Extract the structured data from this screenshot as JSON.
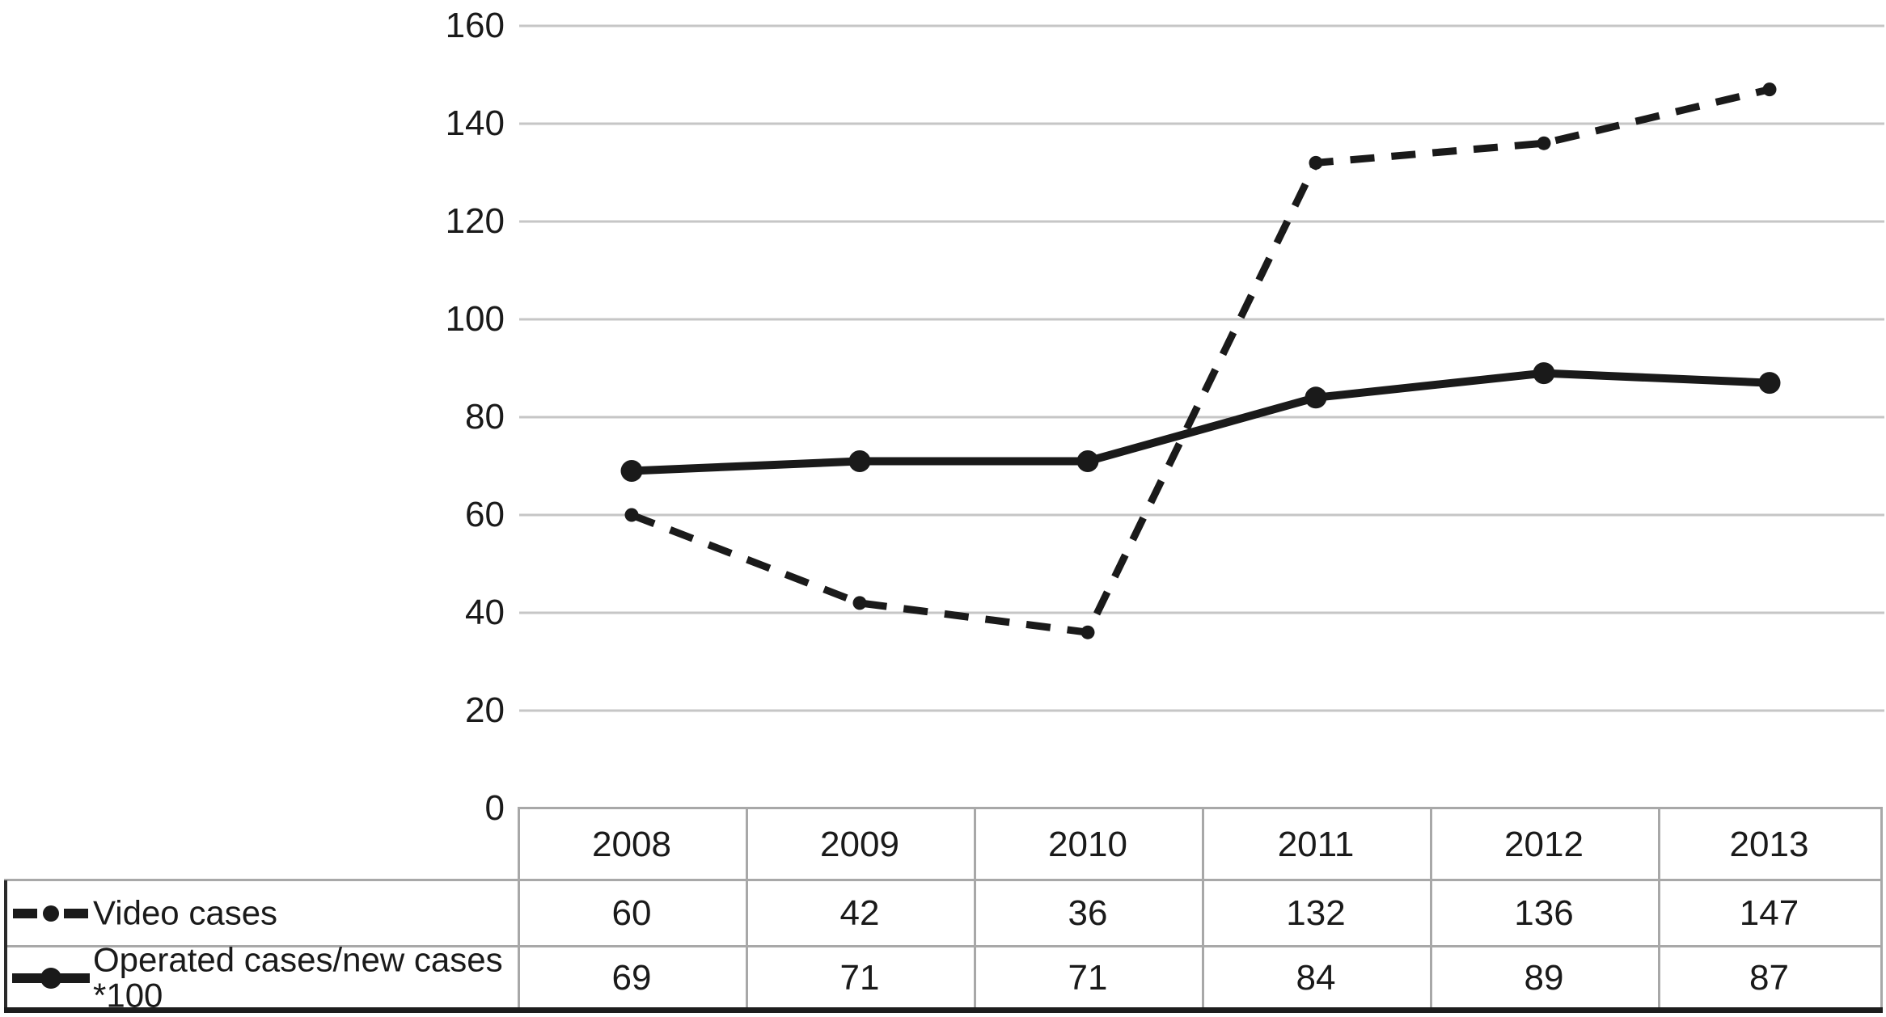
{
  "chart_data": {
    "type": "line",
    "categories": [
      "2008",
      "2009",
      "2010",
      "2011",
      "2012",
      "2013"
    ],
    "series": [
      {
        "name": "Video cases",
        "values": [
          60,
          42,
          36,
          132,
          136,
          147
        ],
        "line_style": "dashed",
        "marker": "small-dot"
      },
      {
        "name": "Operated cases/new cases *100",
        "values": [
          69,
          71,
          71,
          84,
          89,
          87
        ],
        "line_style": "solid",
        "marker": "circle"
      }
    ],
    "title": "",
    "xlabel": "",
    "ylabel": "",
    "ylim": [
      0,
      160
    ],
    "yticks": [
      0,
      20,
      40,
      60,
      80,
      100,
      120,
      140,
      160
    ],
    "grid": true,
    "legend_position": "table-left",
    "colors": {
      "line": "#1a1a1a",
      "gridline": "#c6c6c6",
      "table_border": "#a8a8a8",
      "text": "#1a1a1a",
      "background": "#ffffff"
    }
  }
}
